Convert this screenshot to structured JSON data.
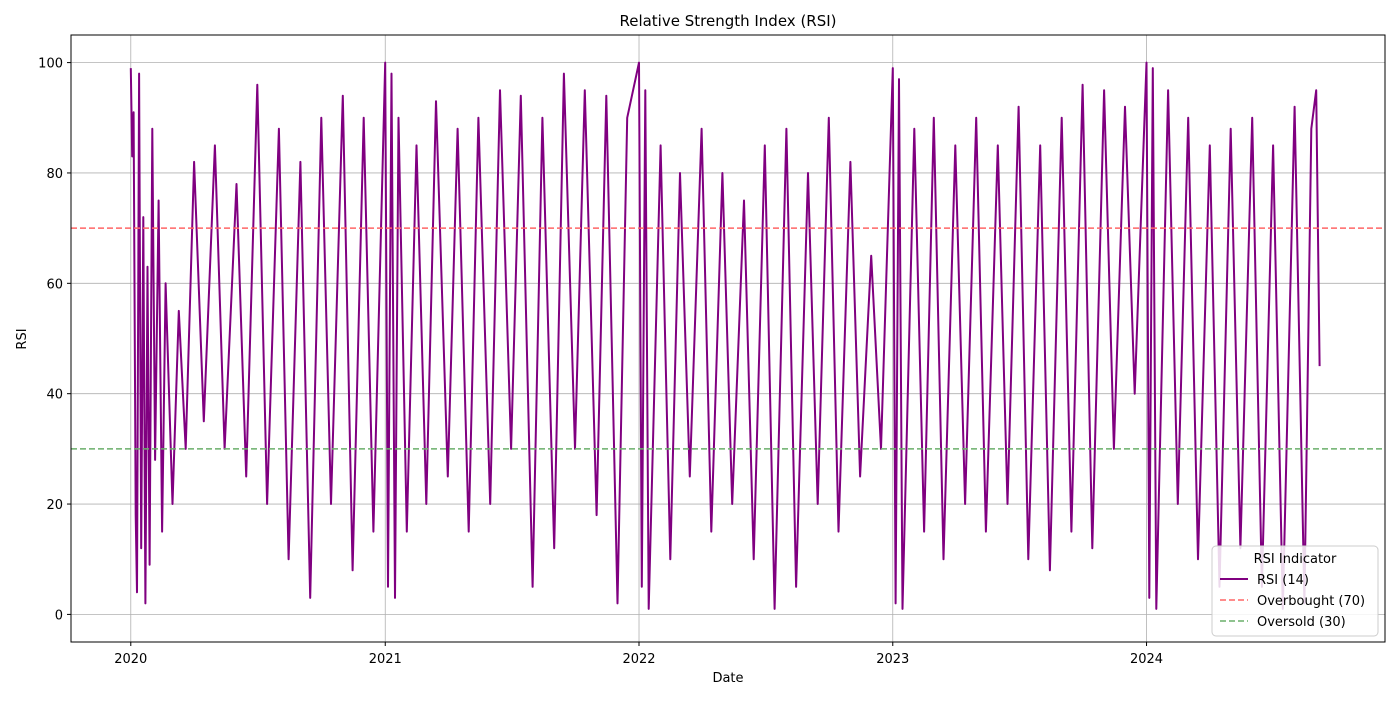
{
  "chart_data": {
    "type": "line",
    "title": "Relative Strength Index (RSI)",
    "xlabel": "Date",
    "ylabel": "RSI",
    "x_ticks": [
      "2020",
      "2021",
      "2022",
      "2023",
      "2024"
    ],
    "y_ticks": [
      0,
      20,
      40,
      60,
      80,
      100
    ],
    "xlim": [
      "2019-10-07",
      "2024-12-09"
    ],
    "ylim": [
      -5,
      105
    ],
    "grid": true,
    "legend": {
      "title": "RSI Indicator",
      "placement": "lower-right",
      "entries": [
        "RSI (14)",
        "Overbought (70)",
        "Oversold (30)"
      ]
    },
    "series": [
      {
        "name": "RSI (14)",
        "color": "#800080",
        "style": "solid",
        "note_x_range": [
          "2020-01-01",
          "2024-09-06"
        ],
        "points": [
          [
            "2020-01-01",
            99
          ],
          [
            "2020-01-03",
            83
          ],
          [
            "2020-01-05",
            91
          ],
          [
            "2020-01-08",
            18
          ],
          [
            "2020-01-10",
            4
          ],
          [
            "2020-01-13",
            98
          ],
          [
            "2020-01-16",
            12
          ],
          [
            "2020-01-19",
            72
          ],
          [
            "2020-01-22",
            2
          ],
          [
            "2020-01-25",
            63
          ],
          [
            "2020-01-28",
            9
          ],
          [
            "2020-02-01",
            88
          ],
          [
            "2020-02-05",
            28
          ],
          [
            "2020-02-10",
            75
          ],
          [
            "2020-02-15",
            15
          ],
          [
            "2020-02-20",
            60
          ],
          [
            "2020-03-01",
            20
          ],
          [
            "2020-03-10",
            55
          ],
          [
            "2020-03-20",
            30
          ],
          [
            "2020-04-01",
            82
          ],
          [
            "2020-04-15",
            35
          ],
          [
            "2020-05-01",
            85
          ],
          [
            "2020-05-15",
            30
          ],
          [
            "2020-06-01",
            78
          ],
          [
            "2020-06-15",
            25
          ],
          [
            "2020-07-01",
            96
          ],
          [
            "2020-07-15",
            20
          ],
          [
            "2020-08-01",
            88
          ],
          [
            "2020-08-15",
            10
          ],
          [
            "2020-09-01",
            82
          ],
          [
            "2020-09-15",
            3
          ],
          [
            "2020-10-01",
            90
          ],
          [
            "2020-10-15",
            20
          ],
          [
            "2020-11-01",
            94
          ],
          [
            "2020-11-15",
            8
          ],
          [
            "2020-12-01",
            90
          ],
          [
            "2020-12-15",
            15
          ],
          [
            "2021-01-01",
            100
          ],
          [
            "2021-01-05",
            5
          ],
          [
            "2021-01-10",
            98
          ],
          [
            "2021-01-15",
            3
          ],
          [
            "2021-01-20",
            90
          ],
          [
            "2021-02-01",
            15
          ],
          [
            "2021-02-15",
            85
          ],
          [
            "2021-03-01",
            20
          ],
          [
            "2021-03-15",
            93
          ],
          [
            "2021-04-01",
            25
          ],
          [
            "2021-04-15",
            88
          ],
          [
            "2021-05-01",
            15
          ],
          [
            "2021-05-15",
            90
          ],
          [
            "2021-06-01",
            20
          ],
          [
            "2021-06-15",
            95
          ],
          [
            "2021-07-01",
            30
          ],
          [
            "2021-07-15",
            94
          ],
          [
            "2021-08-01",
            5
          ],
          [
            "2021-08-15",
            90
          ],
          [
            "2021-09-01",
            12
          ],
          [
            "2021-09-15",
            98
          ],
          [
            "2021-10-01",
            30
          ],
          [
            "2021-10-15",
            95
          ],
          [
            "2021-11-01",
            18
          ],
          [
            "2021-11-15",
            94
          ],
          [
            "2021-12-01",
            2
          ],
          [
            "2021-12-15",
            90
          ],
          [
            "2022-01-01",
            100
          ],
          [
            "2022-01-05",
            5
          ],
          [
            "2022-01-10",
            95
          ],
          [
            "2022-01-15",
            1
          ],
          [
            "2022-02-01",
            85
          ],
          [
            "2022-02-15",
            10
          ],
          [
            "2022-03-01",
            80
          ],
          [
            "2022-03-15",
            25
          ],
          [
            "2022-04-01",
            88
          ],
          [
            "2022-04-15",
            15
          ],
          [
            "2022-05-01",
            80
          ],
          [
            "2022-05-15",
            20
          ],
          [
            "2022-06-01",
            75
          ],
          [
            "2022-06-15",
            10
          ],
          [
            "2022-07-01",
            85
          ],
          [
            "2022-07-15",
            1
          ],
          [
            "2022-08-01",
            88
          ],
          [
            "2022-08-15",
            5
          ],
          [
            "2022-09-01",
            80
          ],
          [
            "2022-09-15",
            20
          ],
          [
            "2022-10-01",
            90
          ],
          [
            "2022-10-15",
            15
          ],
          [
            "2022-11-01",
            82
          ],
          [
            "2022-11-15",
            25
          ],
          [
            "2022-12-01",
            65
          ],
          [
            "2022-12-15",
            30
          ],
          [
            "2023-01-01",
            99
          ],
          [
            "2023-01-05",
            2
          ],
          [
            "2023-01-10",
            97
          ],
          [
            "2023-01-15",
            1
          ],
          [
            "2023-02-01",
            88
          ],
          [
            "2023-02-15",
            15
          ],
          [
            "2023-03-01",
            90
          ],
          [
            "2023-03-15",
            10
          ],
          [
            "2023-04-01",
            85
          ],
          [
            "2023-04-15",
            20
          ],
          [
            "2023-05-01",
            90
          ],
          [
            "2023-05-15",
            15
          ],
          [
            "2023-06-01",
            85
          ],
          [
            "2023-06-15",
            20
          ],
          [
            "2023-07-01",
            92
          ],
          [
            "2023-07-15",
            10
          ],
          [
            "2023-08-01",
            85
          ],
          [
            "2023-08-15",
            8
          ],
          [
            "2023-09-01",
            90
          ],
          [
            "2023-09-15",
            15
          ],
          [
            "2023-10-01",
            96
          ],
          [
            "2023-10-15",
            12
          ],
          [
            "2023-11-01",
            95
          ],
          [
            "2023-11-15",
            30
          ],
          [
            "2023-12-01",
            92
          ],
          [
            "2023-12-15",
            40
          ],
          [
            "2024-01-01",
            100
          ],
          [
            "2024-01-05",
            3
          ],
          [
            "2024-01-10",
            99
          ],
          [
            "2024-01-15",
            1
          ],
          [
            "2024-02-01",
            95
          ],
          [
            "2024-02-15",
            20
          ],
          [
            "2024-03-01",
            90
          ],
          [
            "2024-03-15",
            10
          ],
          [
            "2024-04-01",
            85
          ],
          [
            "2024-04-15",
            5
          ],
          [
            "2024-05-01",
            88
          ],
          [
            "2024-05-15",
            12
          ],
          [
            "2024-06-01",
            90
          ],
          [
            "2024-06-15",
            5
          ],
          [
            "2024-07-01",
            85
          ],
          [
            "2024-07-15",
            1
          ],
          [
            "2024-08-01",
            92
          ],
          [
            "2024-08-15",
            2
          ],
          [
            "2024-08-25",
            88
          ],
          [
            "2024-09-01",
            95
          ],
          [
            "2024-09-06",
            45
          ]
        ]
      },
      {
        "name": "Overbought (70)",
        "color": "#ff6666",
        "style": "dashed",
        "y": 70
      },
      {
        "name": "Oversold (30)",
        "color": "#6aaf6a",
        "style": "dashed",
        "y": 30
      }
    ]
  }
}
